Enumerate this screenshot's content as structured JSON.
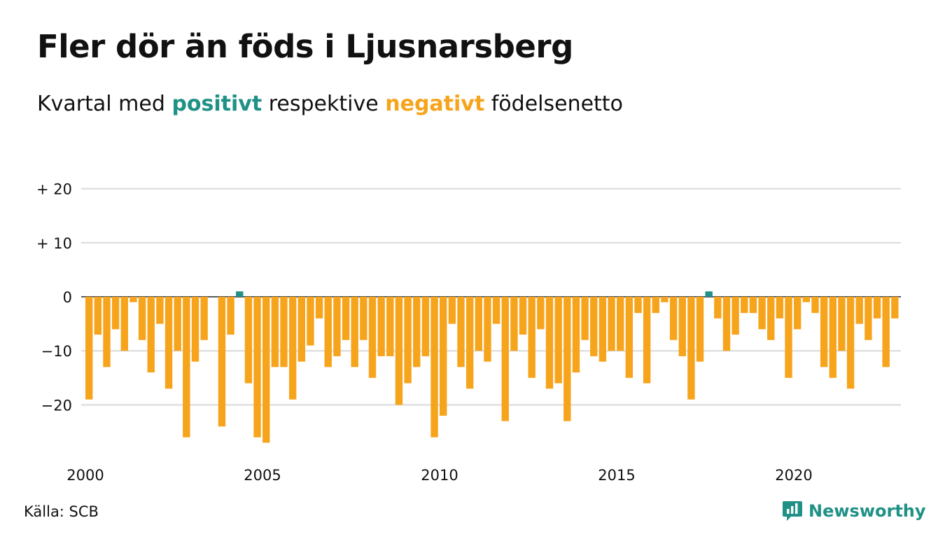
{
  "title": "Fler dör än föds i Ljusnarsberg",
  "subtitle": {
    "prefix": "Kvartal med",
    "positive_word": "positivt",
    "middle": "respektive",
    "negative_word": "negativt",
    "suffix": "födelsenetto"
  },
  "source": "Källa: SCB",
  "brand": {
    "name": "Newsworthy",
    "logo_icon": "newsworthy-logo-icon"
  },
  "colors": {
    "positive": "#1f9186",
    "negative": "#f7a41d",
    "grid": "#d9d9d9"
  },
  "chart_data": {
    "type": "bar",
    "title": "Fler dör än föds i Ljusnarsberg",
    "xlabel": "",
    "ylabel": "",
    "period": "quarterly",
    "start": "2000 Q1",
    "ylim": [
      -28,
      22
    ],
    "yticks": [
      {
        "value": 20,
        "label": "+ 20"
      },
      {
        "value": 10,
        "label": "+ 10"
      },
      {
        "value": 0,
        "label": "0"
      },
      {
        "value": -10,
        "label": "−10"
      },
      {
        "value": -20,
        "label": "−20"
      }
    ],
    "xticks": [
      {
        "value": 2000,
        "label": "2000"
      },
      {
        "value": 2005,
        "label": "2005"
      },
      {
        "value": 2010,
        "label": "2010"
      },
      {
        "value": 2015,
        "label": "2015"
      },
      {
        "value": 2020,
        "label": "2020"
      }
    ],
    "grid": true,
    "legend": "none",
    "series": [
      {
        "values": [
          -19,
          -7,
          -13,
          -6,
          -10,
          -1,
          -8,
          -14,
          -5,
          -17,
          -10,
          -26,
          -12,
          -8,
          0,
          -24,
          -7,
          1,
          -16,
          -26,
          -27,
          -13,
          -13,
          -19,
          -12,
          -9,
          -4,
          -13,
          -11,
          -8,
          -13,
          -8,
          -15,
          -11,
          -11,
          -20,
          -16,
          -13,
          -11,
          -26,
          -22,
          -5,
          -13,
          -17,
          -10,
          -12,
          -5,
          -23,
          -10,
          -7,
          -15,
          -6,
          -17,
          -16,
          -23,
          -14,
          -8,
          -11,
          -12,
          -10,
          -10,
          -15,
          -3,
          -16,
          -3,
          -1,
          -8,
          -11,
          -19,
          -12,
          1,
          -4,
          -10,
          -7,
          -3,
          -3,
          -6,
          -8,
          -4,
          -15,
          -6,
          -1,
          -3,
          -13,
          -15,
          -10,
          -17,
          -5,
          -8,
          -4,
          -13,
          -4
        ]
      }
    ]
  }
}
